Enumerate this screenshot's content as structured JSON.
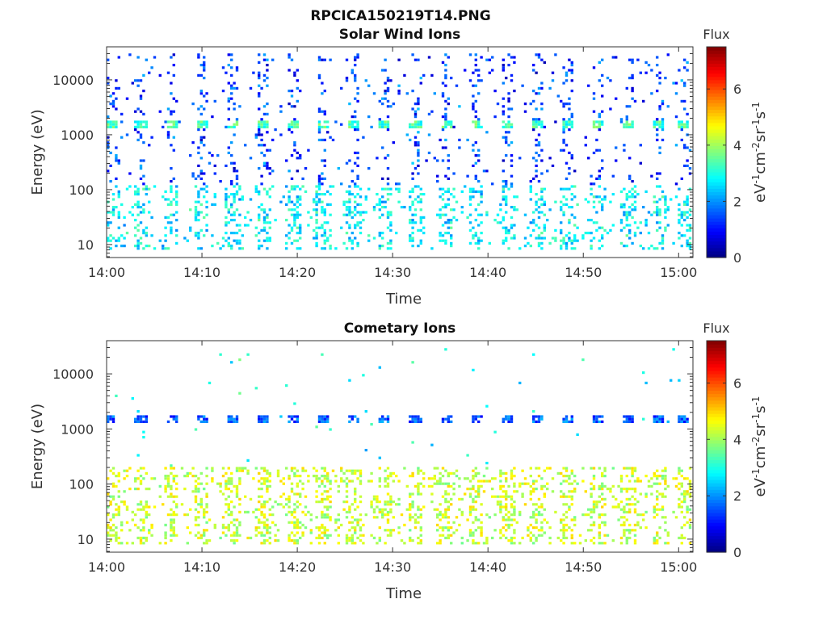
{
  "figure_title": "RPCICA150219T14.PNG",
  "chart_data": [
    {
      "type": "heatmap",
      "title": "Solar Wind Ions",
      "xlabel": "Time",
      "ylabel": "Energy (eV)",
      "x_ticks": [
        "14:00",
        "14:10",
        "14:20",
        "14:30",
        "14:40",
        "14:50",
        "15:00"
      ],
      "x_range_minutes_after_1400": [
        0,
        61.5
      ],
      "y_scale": "log",
      "y_ticks": [
        "10",
        "100",
        "1000",
        "10000"
      ],
      "y_range": [
        5.8,
        40000
      ],
      "colorbar": {
        "title": "Flux",
        "label": "eV-1cm-2sr-1s-1",
        "ticks": [
          "0",
          "2",
          "4",
          "6"
        ],
        "range": [
          0,
          7.5
        ],
        "colormap": "jet"
      },
      "pattern": {
        "sweep_start_minutes": [
          0.2,
          3.2,
          6.4,
          9.6,
          12.8,
          16.0,
          19.2,
          22.4,
          25.6,
          28.8,
          32.0,
          35.2,
          38.4,
          41.6,
          44.8,
          48.0,
          51.2,
          54.4,
          57.6,
          60.2
        ],
        "peak_energy_eV": 1500,
        "peak_flux": 3.3,
        "low_energy_band_eV": [
          8,
          120
        ],
        "low_energy_flux": 3.0,
        "background_flux": 1.0
      }
    },
    {
      "type": "heatmap",
      "title": "Cometary Ions",
      "xlabel": "Time",
      "ylabel": "Energy (eV)",
      "x_ticks": [
        "14:00",
        "14:10",
        "14:20",
        "14:30",
        "14:40",
        "14:50",
        "15:00"
      ],
      "x_range_minutes_after_1400": [
        0,
        61.5
      ],
      "y_scale": "log",
      "y_ticks": [
        "10",
        "100",
        "1000",
        "10000"
      ],
      "y_range": [
        5.8,
        40000
      ],
      "colorbar": {
        "title": "Flux",
        "label": "eV-1cm-2sr-1s-1",
        "ticks": [
          "0",
          "2",
          "4",
          "6"
        ],
        "range": [
          0,
          7.5
        ],
        "colormap": "jet"
      },
      "pattern": {
        "sweep_start_minutes": [
          0.2,
          3.2,
          6.4,
          9.6,
          12.8,
          16.0,
          19.2,
          22.4,
          25.6,
          28.8,
          32.0,
          35.2,
          38.4,
          41.6,
          44.8,
          48.0,
          51.2,
          54.4,
          57.6,
          60.2
        ],
        "peak_energy_eV": 1500,
        "peak_flux": 1.6,
        "low_energy_band_eV": [
          8,
          200
        ],
        "low_energy_flux": 4.3,
        "background_flux": 2.5
      }
    }
  ]
}
